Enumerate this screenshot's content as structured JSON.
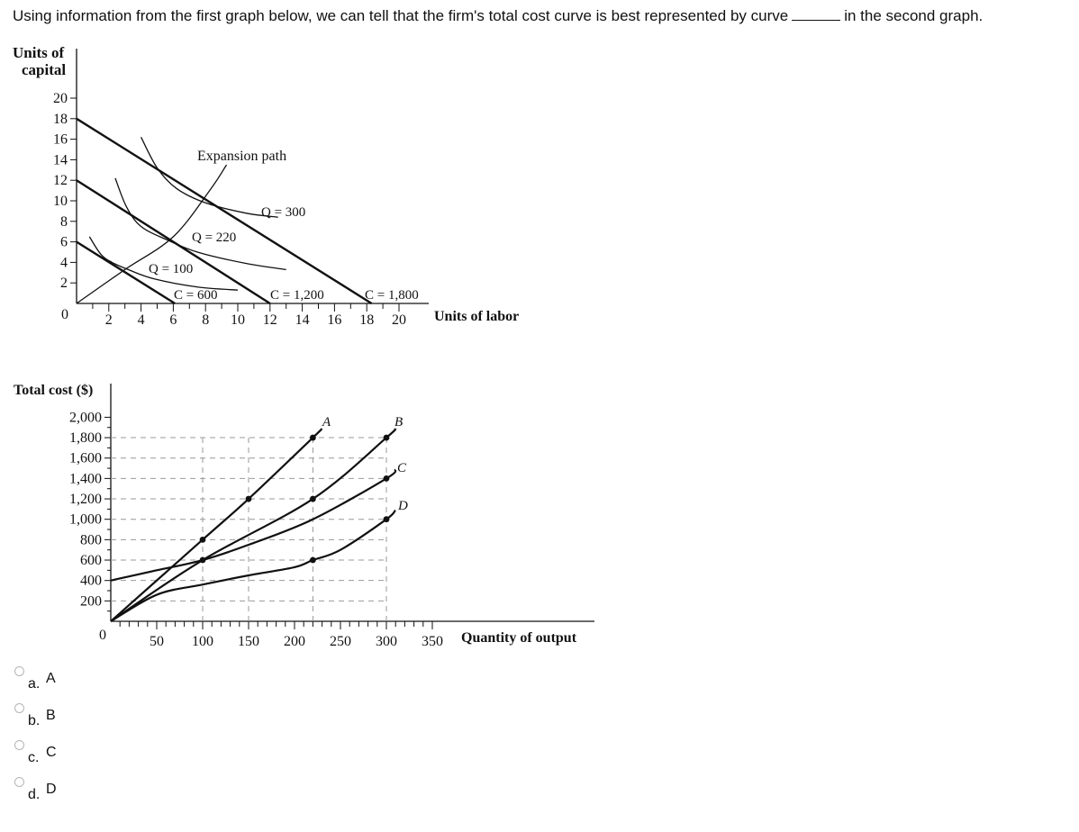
{
  "question": {
    "text_before": "Using information from the first graph below, we can tell that the firm's total cost curve is best represented by curve",
    "text_after": "in the second graph."
  },
  "graph1": {
    "ylabel_line1": "Units of",
    "ylabel_line2": "capital",
    "xlabel": "Units of labor",
    "origin": "0",
    "expansion_label": "Expansion path",
    "q_labels": [
      "Q = 100",
      "Q = 220",
      "Q = 300"
    ],
    "c_labels": [
      "C = 600",
      "C = 1,200",
      "C = 1,800"
    ]
  },
  "graph2": {
    "ylabel": "Total cost ($)",
    "xlabel": "Quantity of output",
    "origin": "0",
    "curve_labels": [
      "A",
      "B",
      "C",
      "D"
    ]
  },
  "chart_data": [
    {
      "type": "line",
      "title": "",
      "xlabel": "Units of labor",
      "ylabel": "Units of capital",
      "xlim": [
        0,
        21
      ],
      "ylim": [
        0,
        21
      ],
      "xticks": [
        "2",
        "4",
        "6",
        "8",
        "10",
        "12",
        "14",
        "16",
        "18",
        "20"
      ],
      "yticks": [
        "2",
        "4",
        "6",
        "8",
        "10",
        "12",
        "14",
        "16",
        "18",
        "20"
      ],
      "series": [
        {
          "name": "C = 600",
          "x": [
            0,
            6.1
          ],
          "y": [
            6,
            0
          ]
        },
        {
          "name": "C = 1,200",
          "x": [
            0,
            12.0
          ],
          "y": [
            12,
            0
          ]
        },
        {
          "name": "C = 1,800",
          "x": [
            0,
            18.3
          ],
          "y": [
            18,
            0
          ]
        },
        {
          "name": "Q = 100",
          "x": [
            0.8,
            1.5,
            2.2,
            3.2,
            4.8,
            7.5,
            10.0
          ],
          "y": [
            6.5,
            4.8,
            4.0,
            3.3,
            2.4,
            1.6,
            1.3
          ]
        },
        {
          "name": "Q = 220",
          "x": [
            2.4,
            3.1,
            4.0,
            5.6,
            7.5,
            10.5,
            13.0
          ],
          "y": [
            12.2,
            9.4,
            7.5,
            6.2,
            5.0,
            3.9,
            3.3
          ]
        },
        {
          "name": "Q = 300",
          "x": [
            4.0,
            5.0,
            6.2,
            8.0,
            10.5,
            12.5
          ],
          "y": [
            16.2,
            13.2,
            11.2,
            9.8,
            8.8,
            8.4
          ]
        },
        {
          "name": "Expansion path",
          "x": [
            0,
            3.0,
            6.0,
            8.3,
            9.3
          ],
          "y": [
            0,
            3.3,
            6.5,
            11.1,
            13.5
          ]
        }
      ]
    },
    {
      "type": "line",
      "title": "",
      "xlabel": "Quantity of output",
      "ylabel": "Total cost ($)",
      "xlim": [
        0,
        360
      ],
      "ylim": [
        0,
        2100
      ],
      "xticks": [
        "50",
        "100",
        "150",
        "200",
        "250",
        "300",
        "350"
      ],
      "yticks": [
        "200",
        "400",
        "600",
        "800",
        "1,000",
        "1,200",
        "1,400",
        "1,600",
        "1,800",
        "2,000"
      ],
      "series": [
        {
          "name": "A",
          "x": [
            0,
            100,
            150,
            220
          ],
          "y": [
            0,
            800,
            1200,
            1800
          ]
        },
        {
          "name": "B",
          "x": [
            0,
            100,
            220,
            300
          ],
          "y": [
            0,
            600,
            1200,
            1800
          ]
        },
        {
          "name": "C",
          "x": [
            0,
            50,
            100,
            150,
            220,
            300
          ],
          "y": [
            400,
            500,
            600,
            750,
            1000,
            1400
          ]
        },
        {
          "name": "D",
          "x": [
            0,
            50,
            100,
            150,
            200,
            220,
            250,
            300
          ],
          "y": [
            0,
            260,
            360,
            450,
            530,
            600,
            700,
            1000
          ]
        }
      ],
      "points": [
        {
          "x": 100,
          "y": 800
        },
        {
          "x": 150,
          "y": 1200
        },
        {
          "x": 220,
          "y": 1800
        },
        {
          "x": 100,
          "y": 600
        },
        {
          "x": 220,
          "y": 1200
        },
        {
          "x": 300,
          "y": 1800
        },
        {
          "x": 300,
          "y": 1400
        },
        {
          "x": 220,
          "y": 600
        },
        {
          "x": 300,
          "y": 1000
        }
      ]
    }
  ],
  "options": [
    {
      "letter": "a.",
      "text": "A"
    },
    {
      "letter": "b.",
      "text": "B"
    },
    {
      "letter": "c.",
      "text": "C"
    },
    {
      "letter": "d.",
      "text": "D"
    }
  ]
}
